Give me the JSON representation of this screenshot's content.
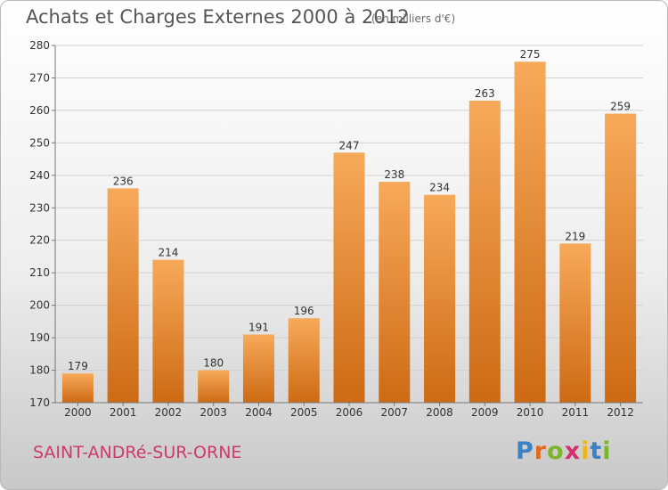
{
  "chart_data": {
    "type": "bar",
    "title": "Achats et Charges Externes 2000 à 2012",
    "subtitle": "(en milliers d'€)",
    "categories": [
      "2000",
      "2001",
      "2002",
      "2003",
      "2004",
      "2005",
      "2006",
      "2007",
      "2008",
      "2009",
      "2010",
      "2011",
      "2012"
    ],
    "values": [
      179,
      236,
      214,
      180,
      191,
      196,
      247,
      238,
      234,
      263,
      275,
      219,
      259
    ],
    "ylim": [
      170,
      280
    ],
    "yticks": [
      170,
      180,
      190,
      200,
      210,
      220,
      230,
      240,
      250,
      260,
      270,
      280
    ],
    "grid": true,
    "bar_color_top": "#f7a95a",
    "bar_color_bottom": "#cd6a14"
  },
  "footer": {
    "commune": "SAINT-ANDRé-SUR-ORNE",
    "logo_text": "Proxiti"
  }
}
